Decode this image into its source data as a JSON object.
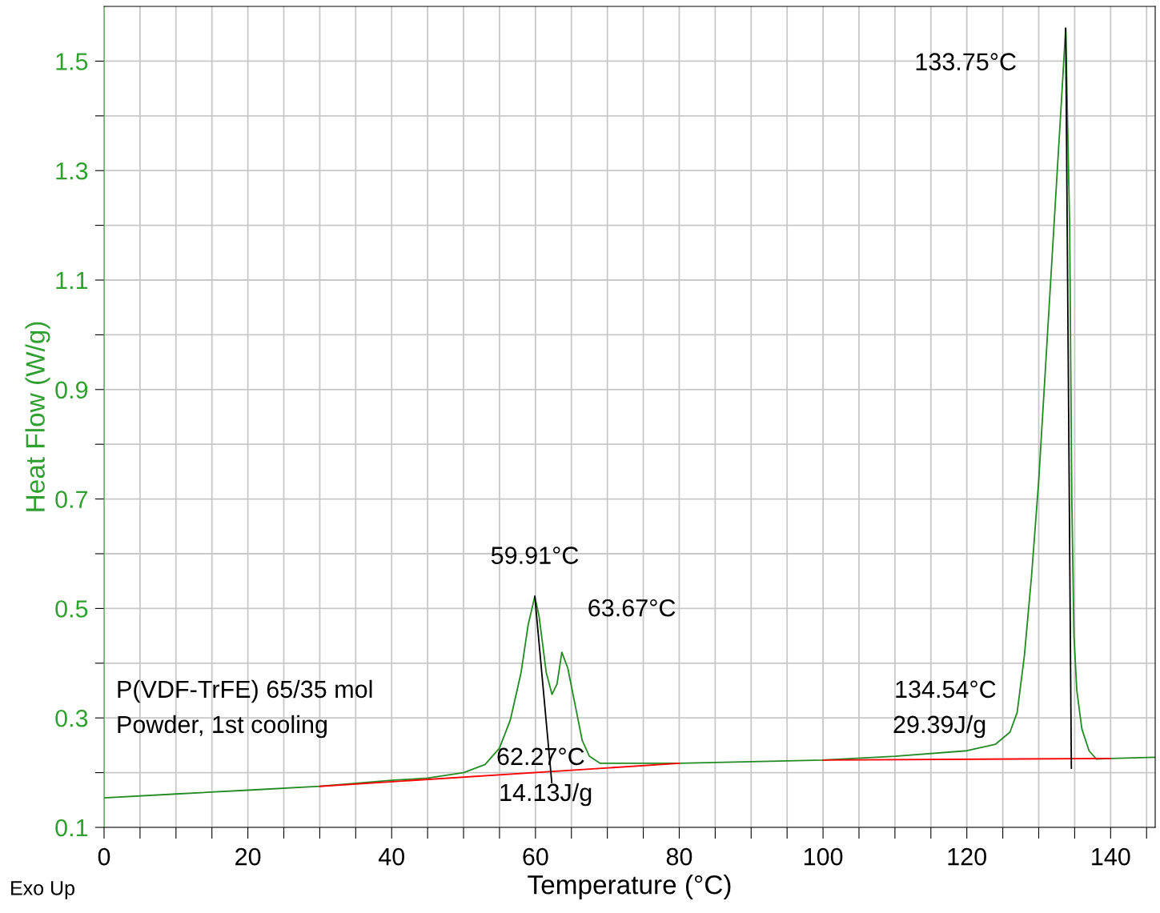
{
  "chart_data": {
    "type": "line",
    "xlabel": "Temperature (°C)",
    "ylabel": "Heat Flow (W/g)",
    "xlim": [
      0,
      146.2
    ],
    "ylim": [
      0.1,
      1.6
    ],
    "xticks": [
      0,
      {
        "value": 5,
        "label": null
      },
      {
        "value": 10,
        "label": null
      },
      {
        "value": 15,
        "label": null
      },
      20,
      {
        "value": 25,
        "label": null
      },
      {
        "value": 30,
        "label": null
      },
      {
        "value": 35,
        "label": null
      },
      40,
      {
        "value": 45,
        "label": null
      },
      {
        "value": 50,
        "label": null
      },
      {
        "value": 55,
        "label": null
      },
      60,
      {
        "value": 65,
        "label": null
      },
      {
        "value": 70,
        "label": null
      },
      {
        "value": 75,
        "label": null
      },
      80,
      {
        "value": 85,
        "label": null
      },
      {
        "value": 90,
        "label": null
      },
      {
        "value": 95,
        "label": null
      },
      100,
      {
        "value": 105,
        "label": null
      },
      {
        "value": 110,
        "label": null
      },
      {
        "value": 115,
        "label": null
      },
      120,
      {
        "value": 125,
        "label": null
      },
      {
        "value": 130,
        "label": null
      },
      {
        "value": 135,
        "label": null
      },
      140,
      {
        "value": 145,
        "label": null
      }
    ],
    "yticks": [
      0.1,
      {
        "value": 0.2,
        "label": null
      },
      0.3,
      {
        "value": 0.4,
        "label": null
      },
      0.5,
      {
        "value": 0.6,
        "label": null
      },
      0.7,
      {
        "value": 0.8,
        "label": null
      },
      0.9,
      {
        "value": 1.0,
        "label": null
      },
      1.1,
      {
        "value": 1.2,
        "label": null
      },
      1.3,
      {
        "value": 1.4,
        "label": null
      },
      1.5
    ],
    "grid": true,
    "line_style": "solid",
    "series": [
      {
        "color": "#228b22",
        "x": [
          0,
          10,
          20,
          30,
          40,
          45,
          50,
          53,
          55,
          56.5,
          58,
          59,
          59.91,
          60.5,
          61.5,
          62.3,
          63,
          63.67,
          64.5,
          65.5,
          66.5,
          67.5,
          69,
          80,
          100,
          110,
          120,
          124,
          126,
          127,
          128,
          129,
          130,
          131,
          132,
          133,
          133.75,
          134.3,
          134.6,
          134.9,
          135.3,
          136,
          137,
          138,
          140,
          146.2
        ],
        "values": [
          0.154,
          0.161,
          0.168,
          0.175,
          0.186,
          0.19,
          0.2,
          0.215,
          0.245,
          0.296,
          0.383,
          0.471,
          0.522,
          0.486,
          0.383,
          0.343,
          0.362,
          0.42,
          0.391,
          0.325,
          0.259,
          0.23,
          0.217,
          0.217,
          0.223,
          0.23,
          0.24,
          0.252,
          0.274,
          0.31,
          0.413,
          0.559,
          0.734,
          0.953,
          1.173,
          1.392,
          1.56,
          1.2,
          0.7,
          0.45,
          0.35,
          0.28,
          0.24,
          0.225,
          0.226,
          0.228
        ]
      },
      {
        "color": "#ff0000",
        "x": [
          30,
          80
        ],
        "values": [
          0.175,
          0.217
        ]
      },
      {
        "color": "#ff0000",
        "x": [
          100,
          140
        ],
        "values": [
          0.223,
          0.226
        ]
      },
      {
        "color": "#000000",
        "x": [
          59.91,
          62.27
        ],
        "values": [
          0.522,
          0.182
        ]
      },
      {
        "color": "#000000",
        "x": [
          133.75,
          134.54
        ],
        "values": [
          1.56,
          0.208
        ]
      }
    ],
    "annotations": [
      {
        "text": "133.75°C",
        "x": 133.75,
        "y": 1.56
      },
      {
        "text": "59.91°C",
        "x": 59.91,
        "y": 0.522
      },
      {
        "text": "63.67°C",
        "x": 63.67,
        "y": 0.42
      },
      "62.27°C",
      "14.13J/g",
      "134.54°C",
      "29.39J/g",
      "P(VDF-TrFE) 65/35 mol",
      "Powder, 1st cooling",
      "Exo Up"
    ]
  }
}
